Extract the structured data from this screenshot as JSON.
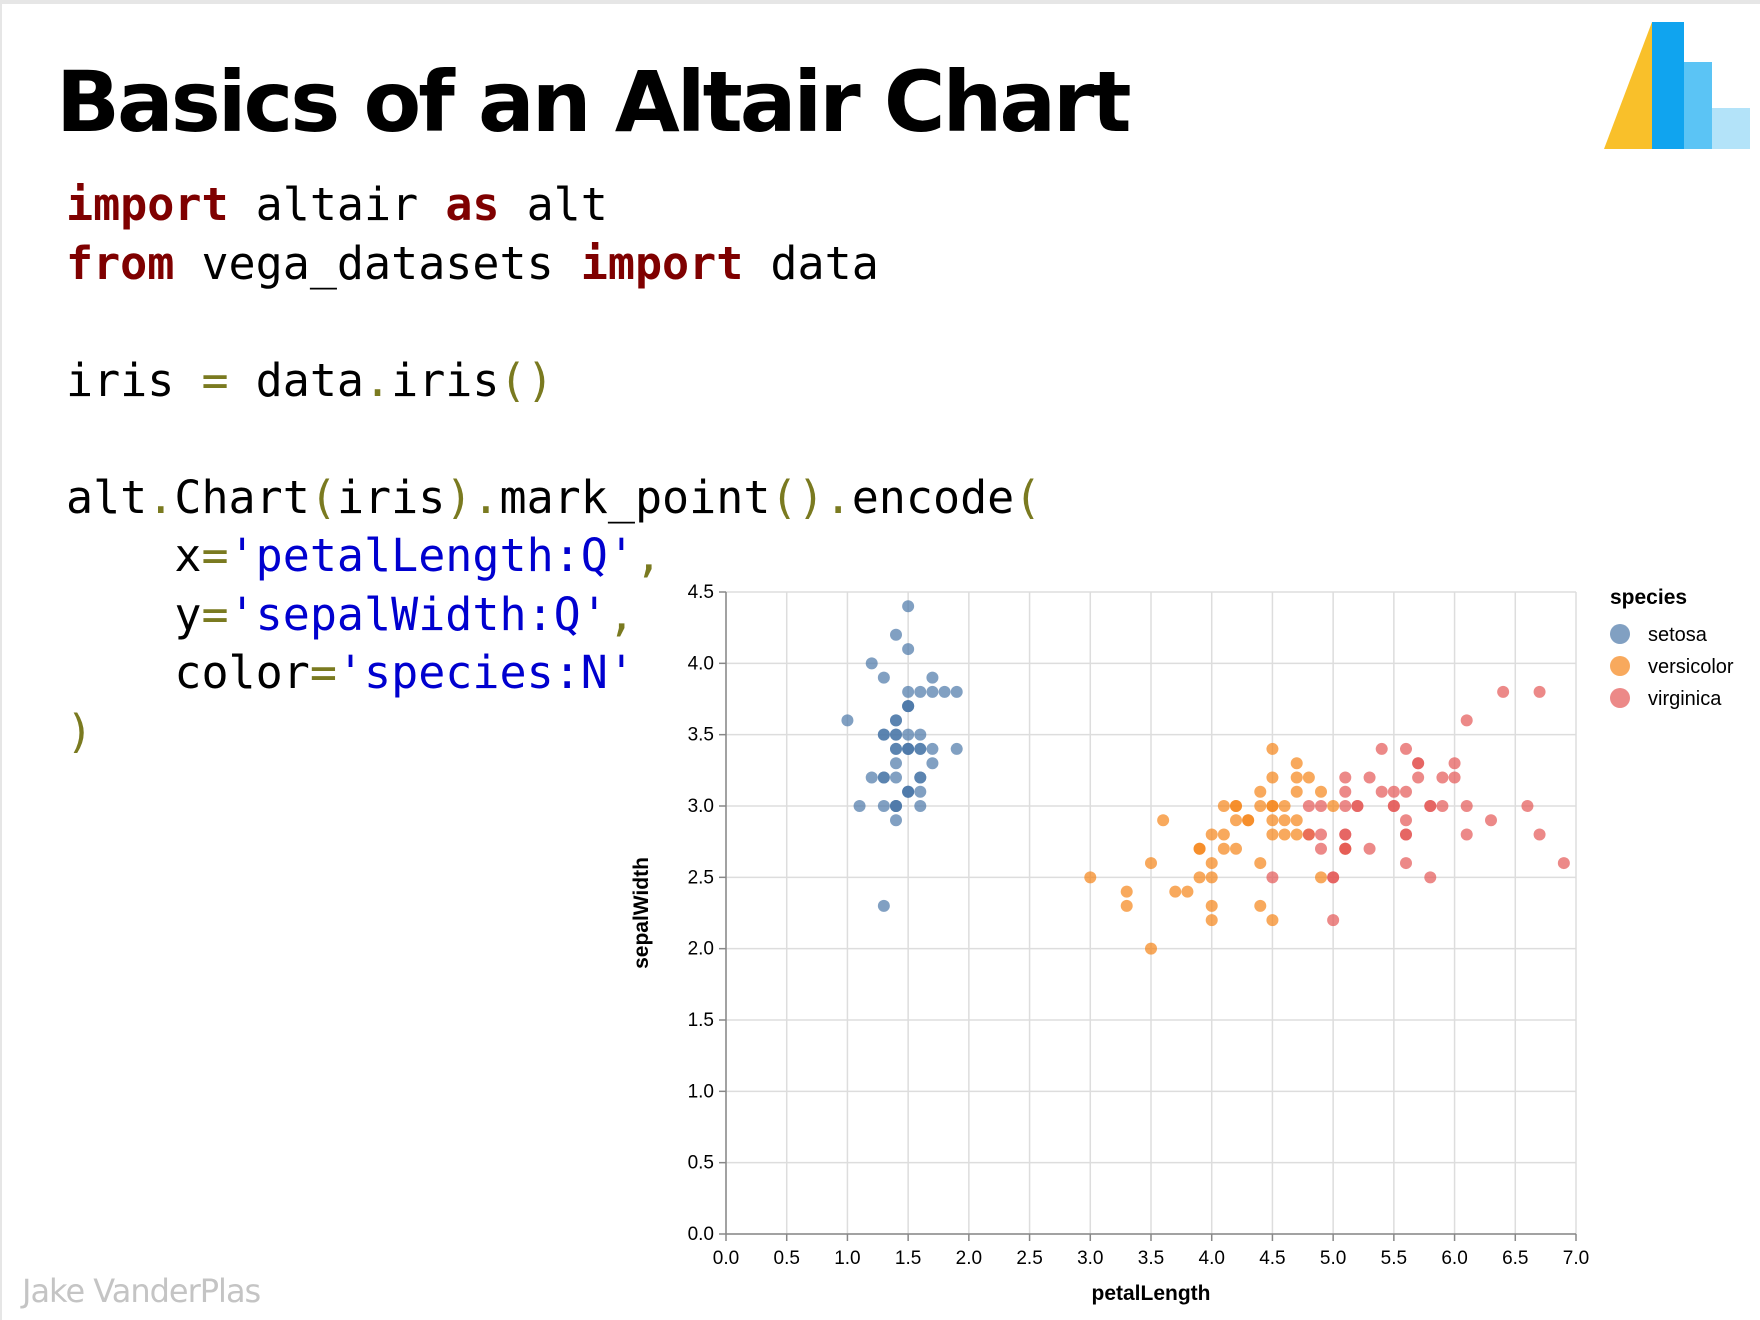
{
  "slide": {
    "title": "Basics of an Altair Chart",
    "author": "Jake VanderPlas"
  },
  "code": {
    "line1": {
      "kw1": "import",
      "t1": " altair ",
      "kw2": "as",
      "t2": " alt"
    },
    "line2": {
      "kw1": "from",
      "t1": " vega_datasets ",
      "kw2": "import",
      "t2": " data"
    },
    "line3": {
      "t1": "iris ",
      "p1": "=",
      "t2": " data",
      "p2": ".",
      "t3": "iris",
      "p3": "()"
    },
    "line4": {
      "t1": "alt",
      "p1": ".",
      "t2": "Chart",
      "p2": "(",
      "t3": "iris",
      "p3": ").",
      "t4": "mark_point",
      "p4": "().",
      "t5": "encode",
      "p5": "("
    },
    "line5": {
      "indent": "    ",
      "t1": "x",
      "p1": "=",
      "s1": "'petalLength:Q'",
      "p2": ","
    },
    "line6": {
      "indent": "    ",
      "t1": "y",
      "p1": "=",
      "s1": "'sepalWidth:Q'",
      "p2": ","
    },
    "line7": {
      "indent": "    ",
      "t1": "color",
      "p1": "=",
      "s1": "'species:N'"
    },
    "line8": {
      "p1": ")"
    }
  },
  "logo": {
    "colors": [
      "#f9c02a",
      "#10a4ef",
      "#5bc4f5",
      "#b3e3f9"
    ]
  },
  "chart_data": {
    "type": "scatter",
    "xlabel": "petalLength",
    "ylabel": "sepalWidth",
    "xlim": [
      0,
      7
    ],
    "ylim": [
      0,
      4.5
    ],
    "xticks": [
      "0.0",
      "0.5",
      "1.0",
      "1.5",
      "2.0",
      "2.5",
      "3.0",
      "3.5",
      "4.0",
      "4.5",
      "5.0",
      "5.5",
      "6.0",
      "6.5",
      "7.0"
    ],
    "yticks": [
      "0.0",
      "0.5",
      "1.0",
      "1.5",
      "2.0",
      "2.5",
      "3.0",
      "3.5",
      "4.0",
      "4.5"
    ],
    "grid": true,
    "legend": {
      "title": "species",
      "position": "right"
    },
    "series": [
      {
        "name": "setosa",
        "color": "#4c78a8",
        "points": [
          [
            1.4,
            3.5
          ],
          [
            1.4,
            3.0
          ],
          [
            1.3,
            3.2
          ],
          [
            1.5,
            3.1
          ],
          [
            1.4,
            3.6
          ],
          [
            1.7,
            3.9
          ],
          [
            1.4,
            3.4
          ],
          [
            1.5,
            3.4
          ],
          [
            1.4,
            2.9
          ],
          [
            1.5,
            3.1
          ],
          [
            1.5,
            3.7
          ],
          [
            1.6,
            3.4
          ],
          [
            1.4,
            3.0
          ],
          [
            1.1,
            3.0
          ],
          [
            1.2,
            4.0
          ],
          [
            1.5,
            4.4
          ],
          [
            1.3,
            3.9
          ],
          [
            1.4,
            3.5
          ],
          [
            1.7,
            3.8
          ],
          [
            1.5,
            3.8
          ],
          [
            1.7,
            3.4
          ],
          [
            1.5,
            3.7
          ],
          [
            1.0,
            3.6
          ],
          [
            1.7,
            3.3
          ],
          [
            1.9,
            3.4
          ],
          [
            1.6,
            3.0
          ],
          [
            1.6,
            3.4
          ],
          [
            1.5,
            3.5
          ],
          [
            1.4,
            3.4
          ],
          [
            1.6,
            3.2
          ],
          [
            1.6,
            3.1
          ],
          [
            1.5,
            3.4
          ],
          [
            1.5,
            4.1
          ],
          [
            1.4,
            4.2
          ],
          [
            1.5,
            3.1
          ],
          [
            1.2,
            3.2
          ],
          [
            1.3,
            3.5
          ],
          [
            1.4,
            3.6
          ],
          [
            1.3,
            3.0
          ],
          [
            1.5,
            3.4
          ],
          [
            1.3,
            3.5
          ],
          [
            1.3,
            2.3
          ],
          [
            1.3,
            3.2
          ],
          [
            1.6,
            3.5
          ],
          [
            1.9,
            3.8
          ],
          [
            1.4,
            3.0
          ],
          [
            1.6,
            3.8
          ],
          [
            1.4,
            3.2
          ],
          [
            1.5,
            3.7
          ],
          [
            1.4,
            3.3
          ],
          [
            1.8,
            3.8
          ],
          [
            1.6,
            3.2
          ]
        ]
      },
      {
        "name": "versicolor",
        "color": "#f58518",
        "points": [
          [
            4.7,
            3.2
          ],
          [
            4.5,
            3.2
          ],
          [
            4.9,
            3.1
          ],
          [
            4.0,
            2.3
          ],
          [
            4.6,
            2.8
          ],
          [
            4.5,
            2.8
          ],
          [
            4.7,
            3.3
          ],
          [
            3.3,
            2.4
          ],
          [
            4.6,
            2.9
          ],
          [
            3.9,
            2.7
          ],
          [
            3.5,
            2.0
          ],
          [
            4.2,
            3.0
          ],
          [
            4.0,
            2.2
          ],
          [
            4.7,
            2.9
          ],
          [
            3.6,
            2.9
          ],
          [
            4.4,
            3.1
          ],
          [
            4.5,
            3.0
          ],
          [
            4.1,
            2.7
          ],
          [
            4.5,
            2.2
          ],
          [
            3.9,
            2.5
          ],
          [
            4.8,
            3.2
          ],
          [
            4.0,
            2.8
          ],
          [
            4.9,
            2.5
          ],
          [
            4.7,
            2.8
          ],
          [
            4.3,
            2.9
          ],
          [
            4.4,
            3.0
          ],
          [
            4.8,
            2.8
          ],
          [
            5.0,
            3.0
          ],
          [
            4.5,
            2.9
          ],
          [
            3.5,
            2.6
          ],
          [
            3.8,
            2.4
          ],
          [
            3.7,
            2.4
          ],
          [
            3.9,
            2.7
          ],
          [
            5.1,
            2.7
          ],
          [
            4.5,
            3.0
          ],
          [
            4.5,
            3.4
          ],
          [
            4.7,
            3.1
          ],
          [
            4.4,
            2.3
          ],
          [
            4.1,
            3.0
          ],
          [
            4.0,
            2.5
          ],
          [
            4.4,
            2.6
          ],
          [
            4.6,
            3.0
          ],
          [
            4.0,
            2.6
          ],
          [
            3.3,
            2.3
          ],
          [
            4.2,
            2.7
          ],
          [
            4.2,
            3.0
          ],
          [
            4.2,
            2.9
          ],
          [
            4.3,
            2.9
          ],
          [
            3.0,
            2.5
          ],
          [
            4.1,
            2.8
          ]
        ]
      },
      {
        "name": "virginica",
        "color": "#e45756",
        "points": [
          [
            6.0,
            3.3
          ],
          [
            5.1,
            2.7
          ],
          [
            5.9,
            3.0
          ],
          [
            5.6,
            2.9
          ],
          [
            5.8,
            3.0
          ],
          [
            6.6,
            3.0
          ],
          [
            4.5,
            2.5
          ],
          [
            6.3,
            2.9
          ],
          [
            5.8,
            2.5
          ],
          [
            6.1,
            3.6
          ],
          [
            5.1,
            3.2
          ],
          [
            5.3,
            2.7
          ],
          [
            5.5,
            3.0
          ],
          [
            5.0,
            2.5
          ],
          [
            5.1,
            2.8
          ],
          [
            5.3,
            3.2
          ],
          [
            5.5,
            3.0
          ],
          [
            6.7,
            3.8
          ],
          [
            6.9,
            2.6
          ],
          [
            5.0,
            2.2
          ],
          [
            5.7,
            3.2
          ],
          [
            4.9,
            2.8
          ],
          [
            6.7,
            2.8
          ],
          [
            4.9,
            2.7
          ],
          [
            5.7,
            3.3
          ],
          [
            6.0,
            3.2
          ],
          [
            4.8,
            2.8
          ],
          [
            4.9,
            3.0
          ],
          [
            5.6,
            2.8
          ],
          [
            5.8,
            3.0
          ],
          [
            6.1,
            2.8
          ],
          [
            6.4,
            3.8
          ],
          [
            5.6,
            2.8
          ],
          [
            5.1,
            2.8
          ],
          [
            5.6,
            2.6
          ],
          [
            6.1,
            3.0
          ],
          [
            5.6,
            3.4
          ],
          [
            5.5,
            3.1
          ],
          [
            4.8,
            3.0
          ],
          [
            5.4,
            3.1
          ],
          [
            5.6,
            3.1
          ],
          [
            5.1,
            3.1
          ],
          [
            5.1,
            2.7
          ],
          [
            5.9,
            3.2
          ],
          [
            5.7,
            3.3
          ],
          [
            5.2,
            3.0
          ],
          [
            5.0,
            2.5
          ],
          [
            5.2,
            3.0
          ],
          [
            5.4,
            3.4
          ],
          [
            5.1,
            3.0
          ]
        ]
      }
    ]
  }
}
